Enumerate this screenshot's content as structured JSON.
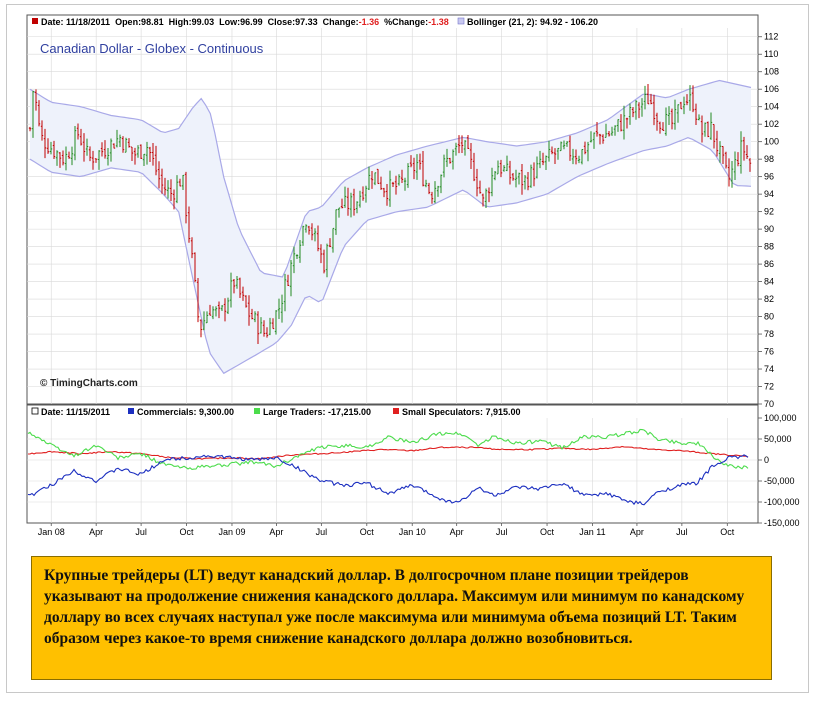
{
  "watermark": "© TimingCharts.com",
  "note": "Крупные трейдеры (LT) ведут канадский доллар. В долгосрочном плане позиции трейдеров указывают на продолжение снижения канадского доллара. Максимум или минимум по канадскому доллару во всех случаях наступал уже после максимума или минимума объема позиций LT. Таким образом через какое-то время снижение канадского доллара должно возобновиться.",
  "colors": {
    "up_bar": "#228b22",
    "down_bar": "#c00000",
    "bollinger_line": "#a9a9e8",
    "bollinger_fill": "#eef2fb",
    "commercials": "#1c2fc0",
    "large_traders": "#4cdc4c",
    "small_speculators": "#e02020",
    "note_background": "#ffc000",
    "title_color": "#2f3f9f"
  },
  "chart_data": [
    {
      "type": "ohlc",
      "title": "Canadian Dollar - Globex - Continuous",
      "legend": {
        "date_label": "Date: 11/18/2011",
        "open_label": "Open:98.81",
        "high_label": "High:99.03",
        "low_label": "Low:96.99",
        "close_label": "Close:97.33",
        "change_label": "Change:",
        "change_value": "-1.36",
        "pct_label": "%Change:",
        "pct_value": "-1.38",
        "bollinger_label": "Bollinger (21, 2): 94.92 - 106.20"
      },
      "y_ticks": [
        "112",
        "110",
        "108",
        "106",
        "104",
        "102",
        "100",
        "98",
        "96",
        "94",
        "92",
        "90",
        "88",
        "86",
        "84",
        "82",
        "80",
        "78",
        "76",
        "74",
        "72",
        "70"
      ],
      "ylim": [
        70,
        113
      ],
      "x_ticks": [
        "Jan 08",
        "Apr",
        "Jul",
        "Oct",
        "Jan 09",
        "Apr",
        "Jul",
        "Oct",
        "Jan 10",
        "Apr",
        "Jul",
        "Oct",
        "Jan 11",
        "Apr",
        "Jul",
        "Oct"
      ],
      "x_tick_dates": [
        "2008-01-01",
        "2008-04-01",
        "2008-07-01",
        "2008-10-01",
        "2009-01-01",
        "2009-04-01",
        "2009-07-01",
        "2009-10-01",
        "2010-01-01",
        "2010-04-01",
        "2010-07-01",
        "2010-10-01",
        "2011-01-01",
        "2011-04-01",
        "2011-07-01",
        "2011-10-01"
      ],
      "date_range": [
        "2007-11-19",
        "2011-11-18"
      ],
      "grid": true,
      "close_path": [
        [
          "2007-11-19",
          101.5
        ],
        [
          "2007-11-26",
          106.5
        ],
        [
          "2007-12-10",
          100.5
        ],
        [
          "2008-01-07",
          99.0
        ],
        [
          "2008-01-28",
          98.0
        ],
        [
          "2008-02-25",
          101.0
        ],
        [
          "2008-03-17",
          98.0
        ],
        [
          "2008-04-14",
          99.0
        ],
        [
          "2008-05-19",
          100.5
        ],
        [
          "2008-06-16",
          98.5
        ],
        [
          "2008-07-14",
          99.5
        ],
        [
          "2008-08-11",
          95.0
        ],
        [
          "2008-09-01",
          94.0
        ],
        [
          "2008-09-22",
          96.0
        ],
        [
          "2008-10-13",
          86.0
        ],
        [
          "2008-10-27",
          78.5
        ],
        [
          "2008-11-17",
          81.0
        ],
        [
          "2008-12-08",
          80.0
        ],
        [
          "2009-01-05",
          84.0
        ],
        [
          "2009-02-02",
          80.5
        ],
        [
          "2009-03-09",
          78.0
        ],
        [
          "2009-04-06",
          81.0
        ],
        [
          "2009-05-04",
          86.5
        ],
        [
          "2009-06-01",
          91.5
        ],
        [
          "2009-07-06",
          86.0
        ],
        [
          "2009-08-03",
          92.5
        ],
        [
          "2009-09-07",
          93.0
        ],
        [
          "2009-10-12",
          96.5
        ],
        [
          "2009-11-09",
          94.5
        ],
        [
          "2009-12-07",
          95.0
        ],
        [
          "2010-01-11",
          97.5
        ],
        [
          "2010-02-08",
          94.0
        ],
        [
          "2010-03-08",
          97.5
        ],
        [
          "2010-04-12",
          99.8
        ],
        [
          "2010-05-10",
          96.0
        ],
        [
          "2010-05-24",
          93.0
        ],
        [
          "2010-06-21",
          97.5
        ],
        [
          "2010-07-19",
          96.0
        ],
        [
          "2010-08-16",
          95.5
        ],
        [
          "2010-09-13",
          97.0
        ],
        [
          "2010-10-11",
          98.5
        ],
        [
          "2010-11-08",
          99.0
        ],
        [
          "2010-12-06",
          98.5
        ],
        [
          "2011-01-03",
          100.5
        ],
        [
          "2011-02-07",
          101.0
        ],
        [
          "2011-03-07",
          102.5
        ],
        [
          "2011-04-04",
          104.0
        ],
        [
          "2011-04-25",
          105.0
        ],
        [
          "2011-05-16",
          102.5
        ],
        [
          "2011-06-13",
          102.0
        ],
        [
          "2011-07-04",
          105.0
        ],
        [
          "2011-07-25",
          104.5
        ],
        [
          "2011-08-08",
          101.0
        ],
        [
          "2011-08-29",
          101.5
        ],
        [
          "2011-09-19",
          98.0
        ],
        [
          "2011-10-03",
          95.5
        ],
        [
          "2011-10-31",
          99.5
        ],
        [
          "2011-11-18",
          97.33
        ]
      ],
      "bollinger": {
        "upper": [
          [
            "2007-11-19",
            106.0
          ],
          [
            "2008-01-01",
            104.5
          ],
          [
            "2008-03-01",
            104.0
          ],
          [
            "2008-05-01",
            103.0
          ],
          [
            "2008-07-01",
            102.5
          ],
          [
            "2008-08-15",
            101.0
          ],
          [
            "2008-09-15",
            101.5
          ],
          [
            "2008-10-15",
            104.0
          ],
          [
            "2008-11-01",
            105.0
          ],
          [
            "2008-11-20",
            103.0
          ],
          [
            "2008-12-15",
            96.0
          ],
          [
            "2009-01-15",
            90.0
          ],
          [
            "2009-03-01",
            85.0
          ],
          [
            "2009-04-15",
            84.5
          ],
          [
            "2009-06-01",
            92.0
          ],
          [
            "2009-07-01",
            92.5
          ],
          [
            "2009-08-15",
            95.5
          ],
          [
            "2009-10-01",
            97.0
          ],
          [
            "2009-12-01",
            98.5
          ],
          [
            "2010-02-01",
            99.5
          ],
          [
            "2010-04-15",
            100.5
          ],
          [
            "2010-06-01",
            100.0
          ],
          [
            "2010-08-01",
            99.5
          ],
          [
            "2010-10-01",
            100.0
          ],
          [
            "2010-12-01",
            101.0
          ],
          [
            "2011-02-01",
            102.5
          ],
          [
            "2011-04-15",
            105.5
          ],
          [
            "2011-06-01",
            105.0
          ],
          [
            "2011-07-15",
            106.0
          ],
          [
            "2011-09-15",
            107.0
          ],
          [
            "2011-11-18",
            106.2
          ]
        ],
        "lower": [
          [
            "2007-11-19",
            98.0
          ],
          [
            "2008-01-01",
            96.5
          ],
          [
            "2008-03-01",
            96.0
          ],
          [
            "2008-05-01",
            97.0
          ],
          [
            "2008-07-01",
            96.5
          ],
          [
            "2008-08-15",
            94.0
          ],
          [
            "2008-09-15",
            92.0
          ],
          [
            "2008-10-15",
            84.0
          ],
          [
            "2008-11-15",
            76.0
          ],
          [
            "2008-12-15",
            73.5
          ],
          [
            "2009-01-15",
            74.5
          ],
          [
            "2009-02-15",
            75.5
          ],
          [
            "2009-04-01",
            77.0
          ],
          [
            "2009-05-01",
            79.0
          ],
          [
            "2009-06-01",
            82.5
          ],
          [
            "2009-07-01",
            81.5
          ],
          [
            "2009-08-15",
            88.0
          ],
          [
            "2009-10-01",
            91.0
          ],
          [
            "2009-12-01",
            92.0
          ],
          [
            "2010-02-01",
            92.5
          ],
          [
            "2010-04-15",
            94.5
          ],
          [
            "2010-06-01",
            92.5
          ],
          [
            "2010-08-01",
            93.0
          ],
          [
            "2010-10-01",
            94.0
          ],
          [
            "2010-12-01",
            96.0
          ],
          [
            "2011-02-01",
            97.5
          ],
          [
            "2011-04-15",
            99.0
          ],
          [
            "2011-06-01",
            99.5
          ],
          [
            "2011-07-15",
            100.5
          ],
          [
            "2011-09-01",
            99.0
          ],
          [
            "2011-10-15",
            95.0
          ],
          [
            "2011-11-18",
            94.9
          ]
        ]
      }
    },
    {
      "type": "line",
      "legend": {
        "date_label": "Date: 11/15/2011",
        "series_labels": [
          "Commercials: 9,300.00",
          "Large Traders: -17,215.00",
          "Small Speculators: 7,915.00"
        ]
      },
      "y_ticks": [
        "100,000",
        "50,000",
        "0",
        "-50,000",
        "-100,000",
        "-150,000"
      ],
      "ylim": [
        -150000,
        100000
      ],
      "grid": true,
      "series": [
        {
          "name": "Commercials",
          "points": [
            [
              "2007-11-19",
              -85000
            ],
            [
              "2008-01-01",
              -60000
            ],
            [
              "2008-02-15",
              -25000
            ],
            [
              "2008-04-01",
              -50000
            ],
            [
              "2008-05-15",
              -20000
            ],
            [
              "2008-07-01",
              -35000
            ],
            [
              "2008-08-15",
              0
            ],
            [
              "2008-10-01",
              5000
            ],
            [
              "2008-11-15",
              10000
            ],
            [
              "2009-01-01",
              5000
            ],
            [
              "2009-02-15",
              0
            ],
            [
              "2009-04-01",
              5000
            ],
            [
              "2009-05-15",
              -20000
            ],
            [
              "2009-07-01",
              -50000
            ],
            [
              "2009-08-15",
              -60000
            ],
            [
              "2009-10-01",
              -55000
            ],
            [
              "2009-11-15",
              -80000
            ],
            [
              "2010-01-01",
              -60000
            ],
            [
              "2010-02-15",
              -85000
            ],
            [
              "2010-03-15",
              -100000
            ],
            [
              "2010-04-15",
              -95000
            ],
            [
              "2010-05-15",
              -65000
            ],
            [
              "2010-06-15",
              -85000
            ],
            [
              "2010-08-01",
              -65000
            ],
            [
              "2010-09-15",
              -70000
            ],
            [
              "2010-11-01",
              -55000
            ],
            [
              "2010-12-15",
              -85000
            ],
            [
              "2011-02-01",
              -80000
            ],
            [
              "2011-03-15",
              -100000
            ],
            [
              "2011-04-15",
              -105000
            ],
            [
              "2011-05-15",
              -75000
            ],
            [
              "2011-07-01",
              -60000
            ],
            [
              "2011-08-01",
              -55000
            ],
            [
              "2011-09-01",
              -15000
            ],
            [
              "2011-10-01",
              5000
            ],
            [
              "2011-11-15",
              9300
            ]
          ]
        },
        {
          "name": "Large Traders",
          "points": [
            [
              "2007-11-19",
              65000
            ],
            [
              "2008-01-01",
              35000
            ],
            [
              "2008-02-15",
              10000
            ],
            [
              "2008-04-01",
              35000
            ],
            [
              "2008-05-15",
              5000
            ],
            [
              "2008-07-01",
              15000
            ],
            [
              "2008-08-15",
              -10000
            ],
            [
              "2008-10-01",
              -20000
            ],
            [
              "2008-11-15",
              -15000
            ],
            [
              "2009-01-01",
              -10000
            ],
            [
              "2009-02-15",
              -5000
            ],
            [
              "2009-04-01",
              -15000
            ],
            [
              "2009-05-15",
              10000
            ],
            [
              "2009-07-01",
              30000
            ],
            [
              "2009-08-15",
              35000
            ],
            [
              "2009-10-01",
              30000
            ],
            [
              "2009-11-15",
              55000
            ],
            [
              "2010-01-01",
              40000
            ],
            [
              "2010-02-15",
              60000
            ],
            [
              "2010-03-15",
              65000
            ],
            [
              "2010-04-15",
              60000
            ],
            [
              "2010-05-15",
              35000
            ],
            [
              "2010-06-15",
              55000
            ],
            [
              "2010-08-01",
              40000
            ],
            [
              "2010-09-15",
              45000
            ],
            [
              "2010-11-01",
              30000
            ],
            [
              "2010-12-15",
              55000
            ],
            [
              "2011-02-01",
              55000
            ],
            [
              "2011-03-15",
              65000
            ],
            [
              "2011-04-15",
              70000
            ],
            [
              "2011-05-15",
              50000
            ],
            [
              "2011-07-01",
              40000
            ],
            [
              "2011-08-01",
              40000
            ],
            [
              "2011-09-01",
              10000
            ],
            [
              "2011-10-01",
              -15000
            ],
            [
              "2011-11-15",
              -17215
            ]
          ]
        },
        {
          "name": "Small Speculators",
          "points": [
            [
              "2007-11-19",
              15000
            ],
            [
              "2008-01-01",
              20000
            ],
            [
              "2008-03-01",
              15000
            ],
            [
              "2008-05-01",
              20000
            ],
            [
              "2008-07-01",
              15000
            ],
            [
              "2008-09-01",
              5000
            ],
            [
              "2008-11-01",
              3000
            ],
            [
              "2009-01-01",
              5000
            ],
            [
              "2009-03-01",
              3000
            ],
            [
              "2009-05-01",
              12000
            ],
            [
              "2009-07-01",
              15000
            ],
            [
              "2009-09-01",
              20000
            ],
            [
              "2009-11-01",
              25000
            ],
            [
              "2010-01-01",
              22000
            ],
            [
              "2010-03-01",
              30000
            ],
            [
              "2010-05-01",
              30000
            ],
            [
              "2010-07-01",
              25000
            ],
            [
              "2010-09-01",
              25000
            ],
            [
              "2010-11-01",
              28000
            ],
            [
              "2011-01-01",
              25000
            ],
            [
              "2011-03-01",
              32000
            ],
            [
              "2011-05-01",
              25000
            ],
            [
              "2011-07-01",
              22000
            ],
            [
              "2011-09-01",
              15000
            ],
            [
              "2011-11-15",
              7915
            ]
          ]
        }
      ]
    }
  ]
}
